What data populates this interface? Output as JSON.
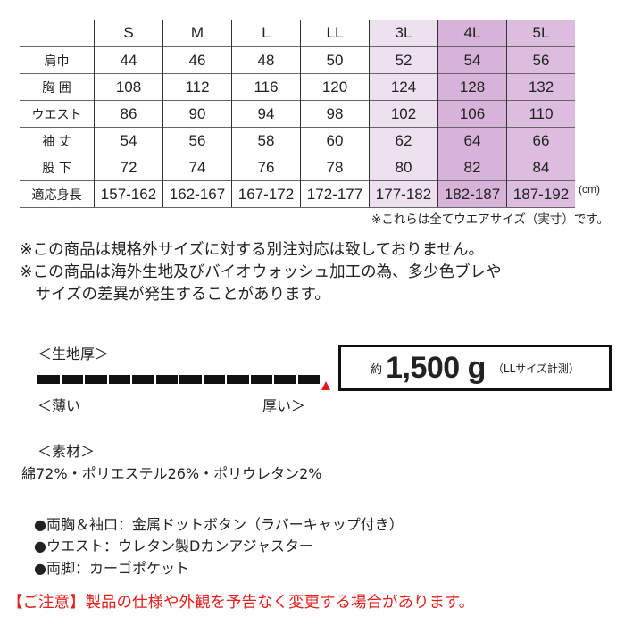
{
  "size_table": {
    "sizes": [
      "S",
      "M",
      "L",
      "LL",
      "3L",
      "4L",
      "5L"
    ],
    "rows": [
      {
        "label": "肩巾",
        "values": [
          "44",
          "46",
          "48",
          "50",
          "52",
          "54",
          "56"
        ]
      },
      {
        "label": "胸 囲",
        "values": [
          "108",
          "112",
          "116",
          "120",
          "124",
          "128",
          "132"
        ]
      },
      {
        "label": "ウエスト",
        "values": [
          "86",
          "90",
          "94",
          "98",
          "102",
          "106",
          "110"
        ]
      },
      {
        "label": "袖 丈",
        "values": [
          "54",
          "56",
          "58",
          "60",
          "62",
          "64",
          "66"
        ]
      },
      {
        "label": "股 下",
        "values": [
          "72",
          "74",
          "76",
          "78",
          "80",
          "82",
          "84"
        ]
      },
      {
        "label": "適応身長",
        "values": [
          "157-162",
          "162-167",
          "167-172",
          "172-177",
          "177-182",
          "182-187",
          "187-192"
        ]
      }
    ],
    "unit": "(cm)",
    "highlight_colors": {
      "3L": "#ede1f0",
      "4L": "#d7b3d9",
      "5L": "#dcbde0"
    }
  },
  "table_note": "※これらは全てウエアサイズ（実寸）です。",
  "notices": [
    "※この商品は規格外サイズに対する別注対応は致しておりません。",
    "※この商品は海外生地及びバイオウォッシュ加工の為、多少色ブレや",
    "　サイズの差異が発生することがあります。"
  ],
  "thickness": {
    "title": "＜生地厚＞",
    "thin": "＜薄い",
    "thick": "厚い＞",
    "level": 12,
    "max": 12,
    "marker_color": "#e01818"
  },
  "weight": {
    "prefix": "約",
    "value": "1,500 g",
    "note": "（LLサイズ計測）"
  },
  "material": {
    "title": "＜素材＞",
    "text": "綿72%・ポリエステル26%・ポリウレタン2%"
  },
  "features": [
    "●両胸＆袖口：金属ドットボタン（ラバーキャップ付き）",
    "●ウエスト：ウレタン製Dカンアジャスター",
    "●両脚：カーゴポケット"
  ],
  "caution": "【ご注意】製品の仕様や外観を予告なく変更する場合があります。"
}
